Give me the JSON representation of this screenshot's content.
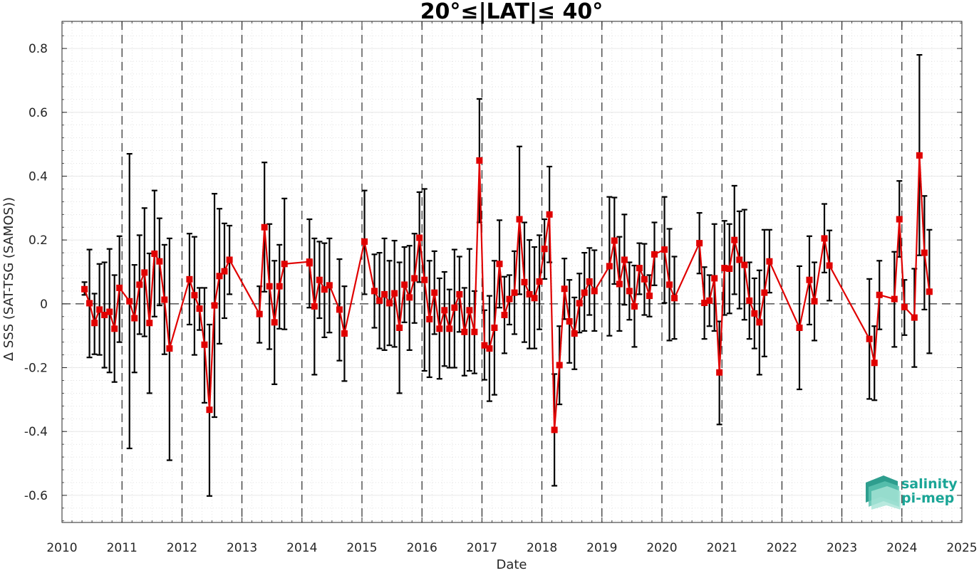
{
  "chart_data": {
    "type": "line",
    "title": "20°≤|LAT|≤ 40°",
    "xlabel": "Date",
    "ylabel": "Δ SSS (SAT-TSG (SAMOS))",
    "xlim": [
      2010,
      2025
    ],
    "ylim": [
      -0.685,
      0.885
    ],
    "x_ticks": [
      2010,
      2011,
      2012,
      2013,
      2014,
      2015,
      2016,
      2017,
      2018,
      2019,
      2020,
      2021,
      2022,
      2023,
      2024,
      2025
    ],
    "x_tick_labels": [
      "2010",
      "2011",
      "2012",
      "2013",
      "2014",
      "2015",
      "2016",
      "2017",
      "2018",
      "2019",
      "2020",
      "2021",
      "2022",
      "2023",
      "2024",
      "2025"
    ],
    "y_ticks": [
      -0.6,
      -0.4,
      -0.2,
      0,
      0.2,
      0.4,
      0.6,
      0.8
    ],
    "y_tick_labels": [
      "-0.6",
      "-0.4",
      "-0.2",
      "0",
      "0.2",
      "0.4",
      "0.6",
      "0.8"
    ],
    "grid": true,
    "minor_grid": true,
    "year_separators": "dashed vertical lines at each year",
    "zero_line": "dashed horizontal line at 0",
    "series": [
      {
        "color": "#e00000",
        "marker": "square",
        "error_bar_color": "#000000",
        "points": [
          {
            "x": 2010.375,
            "y": 0.046,
            "lo": 0.028,
            "hi": 0.068
          },
          {
            "x": 2010.458,
            "y": 0.002,
            "lo": -0.168,
            "hi": 0.17
          },
          {
            "x": 2010.542,
            "y": -0.06,
            "lo": -0.158,
            "hi": 0.032
          },
          {
            "x": 2010.625,
            "y": -0.018,
            "lo": -0.16,
            "hi": 0.125
          },
          {
            "x": 2010.708,
            "y": -0.035,
            "lo": -0.2,
            "hi": 0.13
          },
          {
            "x": 2010.792,
            "y": -0.025,
            "lo": -0.215,
            "hi": 0.172
          },
          {
            "x": 2010.875,
            "y": -0.078,
            "lo": -0.245,
            "hi": 0.09
          },
          {
            "x": 2010.958,
            "y": 0.05,
            "lo": -0.12,
            "hi": 0.212
          },
          {
            "x": 2011.125,
            "y": 0.008,
            "lo": -0.453,
            "hi": 0.47
          },
          {
            "x": 2011.208,
            "y": -0.045,
            "lo": -0.215,
            "hi": 0.122
          },
          {
            "x": 2011.292,
            "y": 0.06,
            "lo": -0.095,
            "hi": 0.215
          },
          {
            "x": 2011.375,
            "y": 0.098,
            "lo": -0.102,
            "hi": 0.3
          },
          {
            "x": 2011.458,
            "y": -0.06,
            "lo": -0.28,
            "hi": 0.158
          },
          {
            "x": 2011.542,
            "y": 0.157,
            "lo": -0.04,
            "hi": 0.355
          },
          {
            "x": 2011.625,
            "y": 0.133,
            "lo": -0.005,
            "hi": 0.268
          },
          {
            "x": 2011.708,
            "y": 0.013,
            "lo": -0.158,
            "hi": 0.185
          },
          {
            "x": 2011.792,
            "y": -0.14,
            "lo": -0.49,
            "hi": 0.205
          },
          {
            "x": 2012.125,
            "y": 0.077,
            "lo": -0.065,
            "hi": 0.22
          },
          {
            "x": 2012.208,
            "y": 0.027,
            "lo": -0.16,
            "hi": 0.21
          },
          {
            "x": 2012.292,
            "y": -0.015,
            "lo": -0.082,
            "hi": 0.05
          },
          {
            "x": 2012.375,
            "y": -0.128,
            "lo": -0.31,
            "hi": 0.05
          },
          {
            "x": 2012.458,
            "y": -0.332,
            "lo": -0.602,
            "hi": -0.065
          },
          {
            "x": 2012.542,
            "y": -0.005,
            "lo": -0.355,
            "hi": 0.345
          },
          {
            "x": 2012.625,
            "y": 0.087,
            "lo": -0.125,
            "hi": 0.298
          },
          {
            "x": 2012.708,
            "y": 0.102,
            "lo": -0.045,
            "hi": 0.252
          },
          {
            "x": 2012.792,
            "y": 0.138,
            "lo": 0.03,
            "hi": 0.245
          },
          {
            "x": 2013.292,
            "y": -0.032,
            "lo": -0.122,
            "hi": 0.055
          },
          {
            "x": 2013.375,
            "y": 0.24,
            "lo": 0.038,
            "hi": 0.443
          },
          {
            "x": 2013.458,
            "y": 0.055,
            "lo": -0.142,
            "hi": 0.25
          },
          {
            "x": 2013.542,
            "y": -0.058,
            "lo": -0.252,
            "hi": 0.135
          },
          {
            "x": 2013.625,
            "y": 0.055,
            "lo": -0.078,
            "hi": 0.185
          },
          {
            "x": 2013.708,
            "y": 0.125,
            "lo": -0.08,
            "hi": 0.33
          },
          {
            "x": 2014.125,
            "y": 0.132,
            "lo": 0.128,
            "hi": 0.137
          },
          {
            "x": 2014.125,
            "y": 0.127,
            "lo": -0.012,
            "hi": 0.265
          },
          {
            "x": 2014.208,
            "y": -0.008,
            "lo": -0.222,
            "hi": 0.205
          },
          {
            "x": 2014.292,
            "y": 0.075,
            "lo": -0.045,
            "hi": 0.195
          },
          {
            "x": 2014.375,
            "y": 0.045,
            "lo": -0.105,
            "hi": 0.19
          },
          {
            "x": 2014.458,
            "y": 0.058,
            "lo": -0.09,
            "hi": 0.205
          },
          {
            "x": 2014.625,
            "y": -0.018,
            "lo": -0.178,
            "hi": 0.14
          },
          {
            "x": 2014.708,
            "y": -0.093,
            "lo": -0.242,
            "hi": 0.055
          },
          {
            "x": 2015.042,
            "y": 0.195,
            "lo": 0.03,
            "hi": 0.355
          },
          {
            "x": 2015.208,
            "y": 0.04,
            "lo": -0.075,
            "hi": 0.155
          },
          {
            "x": 2015.292,
            "y": 0.01,
            "lo": -0.14,
            "hi": 0.16
          },
          {
            "x": 2015.375,
            "y": 0.03,
            "lo": -0.145,
            "hi": 0.205
          },
          {
            "x": 2015.458,
            "y": 0.002,
            "lo": -0.13,
            "hi": 0.135
          },
          {
            "x": 2015.542,
            "y": 0.033,
            "lo": -0.135,
            "hi": 0.198
          },
          {
            "x": 2015.625,
            "y": -0.075,
            "lo": -0.28,
            "hi": 0.13
          },
          {
            "x": 2015.708,
            "y": 0.06,
            "lo": -0.058,
            "hi": 0.178
          },
          {
            "x": 2015.792,
            "y": 0.02,
            "lo": -0.145,
            "hi": 0.182
          },
          {
            "x": 2015.875,
            "y": 0.08,
            "lo": -0.06,
            "hi": 0.22
          },
          {
            "x": 2015.958,
            "y": 0.207,
            "lo": 0.068,
            "hi": 0.35
          },
          {
            "x": 2016.042,
            "y": 0.075,
            "lo": -0.21,
            "hi": 0.36
          },
          {
            "x": 2016.125,
            "y": -0.048,
            "lo": -0.23,
            "hi": 0.135
          },
          {
            "x": 2016.208,
            "y": 0.035,
            "lo": -0.095,
            "hi": 0.165
          },
          {
            "x": 2016.292,
            "y": -0.078,
            "lo": -0.235,
            "hi": 0.08
          },
          {
            "x": 2016.375,
            "y": -0.02,
            "lo": -0.195,
            "hi": 0.1
          },
          {
            "x": 2016.458,
            "y": -0.078,
            "lo": -0.2,
            "hi": 0.045
          },
          {
            "x": 2016.542,
            "y": -0.012,
            "lo": -0.2,
            "hi": 0.17
          },
          {
            "x": 2016.625,
            "y": 0.03,
            "lo": -0.088,
            "hi": 0.148
          },
          {
            "x": 2016.708,
            "y": -0.088,
            "lo": -0.225,
            "hi": 0.05
          },
          {
            "x": 2016.792,
            "y": -0.02,
            "lo": -0.21,
            "hi": 0.172
          },
          {
            "x": 2016.875,
            "y": -0.088,
            "lo": -0.218,
            "hi": 0.04
          },
          {
            "x": 2016.958,
            "y": 0.449,
            "lo": 0.255,
            "hi": 0.642
          },
          {
            "x": 2017.042,
            "y": -0.13,
            "lo": -0.238,
            "hi": -0.02
          },
          {
            "x": 2017.125,
            "y": -0.14,
            "lo": -0.305,
            "hi": 0.025
          },
          {
            "x": 2017.208,
            "y": -0.075,
            "lo": -0.285,
            "hi": 0.135
          },
          {
            "x": 2017.292,
            "y": 0.125,
            "lo": -0.012,
            "hi": 0.262
          },
          {
            "x": 2017.375,
            "y": -0.035,
            "lo": -0.155,
            "hi": 0.085
          },
          {
            "x": 2017.458,
            "y": 0.015,
            "lo": -0.065,
            "hi": 0.09
          },
          {
            "x": 2017.542,
            "y": 0.035,
            "lo": -0.095,
            "hi": 0.165
          },
          {
            "x": 2017.625,
            "y": 0.265,
            "lo": 0.03,
            "hi": 0.493
          },
          {
            "x": 2017.708,
            "y": 0.068,
            "lo": -0.12,
            "hi": 0.255
          },
          {
            "x": 2017.792,
            "y": 0.03,
            "lo": -0.14,
            "hi": 0.2
          },
          {
            "x": 2017.875,
            "y": 0.018,
            "lo": -0.14,
            "hi": 0.178
          },
          {
            "x": 2017.958,
            "y": 0.07,
            "lo": -0.08,
            "hi": 0.215
          },
          {
            "x": 2018.042,
            "y": 0.172,
            "lo": 0.078,
            "hi": 0.265
          },
          {
            "x": 2018.125,
            "y": 0.28,
            "lo": 0.13,
            "hi": 0.43
          },
          {
            "x": 2018.208,
            "y": -0.395,
            "lo": -0.57,
            "hi": -0.22
          },
          {
            "x": 2018.292,
            "y": -0.192,
            "lo": -0.315,
            "hi": -0.07
          },
          {
            "x": 2018.375,
            "y": 0.047,
            "lo": -0.048,
            "hi": 0.142
          },
          {
            "x": 2018.458,
            "y": -0.055,
            "lo": -0.185,
            "hi": 0.075
          },
          {
            "x": 2018.542,
            "y": -0.093,
            "lo": -0.205,
            "hi": 0.02
          },
          {
            "x": 2018.625,
            "y": 0.002,
            "lo": -0.09,
            "hi": 0.095
          },
          {
            "x": 2018.708,
            "y": 0.035,
            "lo": -0.085,
            "hi": 0.16
          },
          {
            "x": 2018.792,
            "y": 0.07,
            "lo": -0.035,
            "hi": 0.175
          },
          {
            "x": 2018.875,
            "y": 0.04,
            "lo": -0.085,
            "hi": 0.168
          },
          {
            "x": 2019.125,
            "y": 0.118,
            "lo": -0.1,
            "hi": 0.335
          },
          {
            "x": 2019.208,
            "y": 0.198,
            "lo": 0.062,
            "hi": 0.333
          },
          {
            "x": 2019.292,
            "y": 0.062,
            "lo": -0.085,
            "hi": 0.21
          },
          {
            "x": 2019.375,
            "y": 0.138,
            "lo": -0.003,
            "hi": 0.28
          },
          {
            "x": 2019.458,
            "y": 0.04,
            "lo": -0.05,
            "hi": 0.13
          },
          {
            "x": 2019.542,
            "y": -0.008,
            "lo": -0.135,
            "hi": 0.12
          },
          {
            "x": 2019.625,
            "y": 0.112,
            "lo": 0.03,
            "hi": 0.19
          },
          {
            "x": 2019.708,
            "y": 0.077,
            "lo": -0.035,
            "hi": 0.188
          },
          {
            "x": 2019.792,
            "y": 0.025,
            "lo": -0.04,
            "hi": 0.09
          },
          {
            "x": 2019.875,
            "y": 0.155,
            "lo": 0.058,
            "hi": 0.255
          },
          {
            "x": 2020.042,
            "y": 0.17,
            "lo": 0.003,
            "hi": 0.335
          },
          {
            "x": 2020.125,
            "y": 0.06,
            "lo": -0.115,
            "hi": 0.235
          },
          {
            "x": 2020.208,
            "y": 0.018,
            "lo": -0.11,
            "hi": 0.148
          },
          {
            "x": 2020.625,
            "y": 0.19,
            "lo": 0.095,
            "hi": 0.285
          },
          {
            "x": 2020.708,
            "y": 0.003,
            "lo": -0.11,
            "hi": 0.115
          },
          {
            "x": 2020.792,
            "y": 0.01,
            "lo": -0.07,
            "hi": 0.09
          },
          {
            "x": 2020.875,
            "y": 0.08,
            "lo": -0.085,
            "hi": 0.25
          },
          {
            "x": 2020.958,
            "y": -0.215,
            "lo": -0.378,
            "hi": -0.055
          },
          {
            "x": 2021.042,
            "y": 0.112,
            "lo": -0.035,
            "hi": 0.26
          },
          {
            "x": 2021.125,
            "y": 0.11,
            "lo": -0.03,
            "hi": 0.25
          },
          {
            "x": 2021.208,
            "y": 0.2,
            "lo": 0.03,
            "hi": 0.37
          },
          {
            "x": 2021.292,
            "y": 0.138,
            "lo": -0.015,
            "hi": 0.29
          },
          {
            "x": 2021.375,
            "y": 0.122,
            "lo": -0.05,
            "hi": 0.295
          },
          {
            "x": 2021.458,
            "y": 0.01,
            "lo": -0.11,
            "hi": 0.13
          },
          {
            "x": 2021.542,
            "y": -0.03,
            "lo": -0.14,
            "hi": 0.08
          },
          {
            "x": 2021.625,
            "y": -0.058,
            "lo": -0.222,
            "hi": 0.105
          },
          {
            "x": 2021.708,
            "y": 0.035,
            "lo": -0.165,
            "hi": 0.232
          },
          {
            "x": 2021.792,
            "y": 0.133,
            "lo": 0.035,
            "hi": 0.232
          },
          {
            "x": 2022.292,
            "y": -0.075,
            "lo": -0.268,
            "hi": 0.118
          },
          {
            "x": 2022.458,
            "y": 0.075,
            "lo": -0.065,
            "hi": 0.212
          },
          {
            "x": 2022.542,
            "y": 0.008,
            "lo": -0.115,
            "hi": 0.13
          },
          {
            "x": 2022.708,
            "y": 0.205,
            "lo": 0.098,
            "hi": 0.313
          },
          {
            "x": 2022.792,
            "y": 0.12,
            "lo": 0.01,
            "hi": 0.23
          },
          {
            "x": 2023.458,
            "y": -0.11,
            "lo": -0.298,
            "hi": 0.078
          },
          {
            "x": 2023.542,
            "y": -0.185,
            "lo": -0.302,
            "hi": -0.07
          },
          {
            "x": 2023.625,
            "y": 0.028,
            "lo": -0.08,
            "hi": 0.135
          },
          {
            "x": 2023.875,
            "y": 0.015,
            "lo": -0.135,
            "hi": 0.163
          },
          {
            "x": 2023.958,
            "y": 0.265,
            "lo": 0.147,
            "hi": 0.385
          },
          {
            "x": 2024.042,
            "y": -0.01,
            "lo": -0.098,
            "hi": 0.075
          },
          {
            "x": 2024.208,
            "y": -0.043,
            "lo": -0.198,
            "hi": 0.11
          },
          {
            "x": 2024.292,
            "y": 0.465,
            "lo": 0.152,
            "hi": 0.78
          },
          {
            "x": 2024.375,
            "y": 0.16,
            "lo": -0.018,
            "hi": 0.338
          },
          {
            "x": 2024.458,
            "y": 0.038,
            "lo": -0.155,
            "hi": 0.232
          }
        ]
      }
    ]
  },
  "logo": {
    "line1": "salinity",
    "line2": "pi-mep",
    "color": "#1aa596"
  }
}
